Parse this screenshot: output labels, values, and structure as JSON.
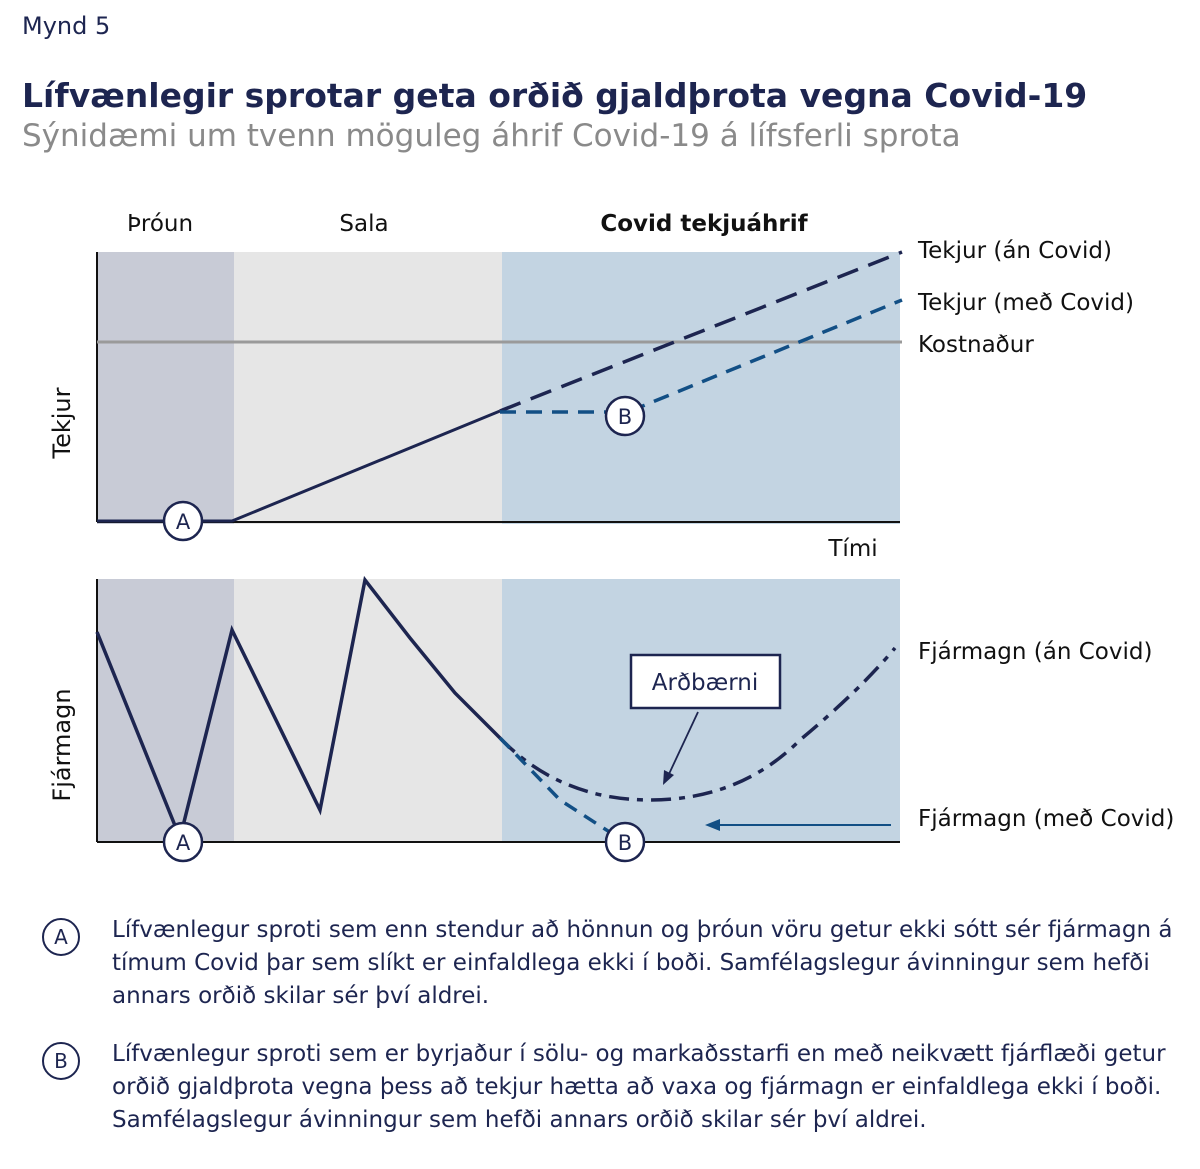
{
  "figure_label": "Mynd 5",
  "title": "Lífvænlegir sprotar geta orðið gjaldþrota vegna Covid-19",
  "subtitle": "Sýnidæmi um tvenn möguleg áhrif Covid-19 á lífsferli sprota",
  "phases": {
    "development": "Þróun",
    "sales": "Sala",
    "covid": "Covid tekjuáhrif"
  },
  "axes": {
    "revenue": "Tekjur",
    "capital": "Fjármagn",
    "time": "Tími"
  },
  "series_labels": {
    "revenue_no_covid": "Tekjur (án Covid)",
    "revenue_with_covid": "Tekjur (með Covid)",
    "cost": "Kostnaður",
    "capital_no_covid": "Fjármagn (án Covid)",
    "capital_with_covid": "Fjármagn (með Covid)"
  },
  "callout": "Arðbærni",
  "markers": {
    "a": "A",
    "b": "B"
  },
  "colors": {
    "navy": "#1d2550",
    "blue": "#124f85",
    "cost_gray": "#9a9a9a",
    "dev_bg": "#c8cbd6",
    "sales_bg": "#e6e6e6",
    "covid_bg": "#c3d4e2"
  },
  "notes": [
    {
      "marker": "A",
      "text": "Lífvænlegur sproti sem enn stendur að hönnun og þróun vöru getur ekki sótt sér fjármagn á tímum Covid þar sem slíkt er einfaldlega ekki í boði. Samfélagslegur ávinningur sem hefði annars orðið skilar sér því aldrei."
    },
    {
      "marker": "B",
      "text": "Lífvænlegur sproti sem er byrjaður í sölu- og markaðsstarfi en með neikvætt fjárflæði getur orðið gjaldþrota vegna þess að tekjur hætta að vaxa og fjármagn er einfaldlega ekki í boði. Samfélagslegur ávinningur sem hefði annars orðið skilar sér því aldrei."
    }
  ]
}
